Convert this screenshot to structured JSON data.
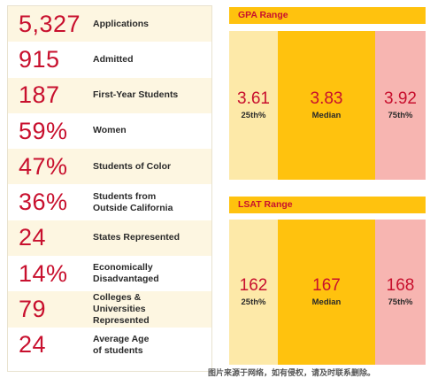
{
  "stats": [
    {
      "value": "5,327",
      "label": "Applications"
    },
    {
      "value": "915",
      "label": "Admitted"
    },
    {
      "value": "187",
      "label": "First-Year Students"
    },
    {
      "value": "59%",
      "label": "Women"
    },
    {
      "value": "47%",
      "label": "Students of Color"
    },
    {
      "value": "36%",
      "label": "Students from\nOutside California"
    },
    {
      "value": "24",
      "label": "States Represented"
    },
    {
      "value": "14%",
      "label": "Economically\nDisadvantaged"
    },
    {
      "value": "79",
      "label": "Colleges &\nUniversities\nRepresented"
    },
    {
      "value": "24",
      "label": "Average Age\nof students"
    }
  ],
  "gpa": {
    "title": "GPA Range",
    "low": {
      "value": "3.61",
      "label": "25th%"
    },
    "median": {
      "value": "3.83",
      "label": "Median"
    },
    "high": {
      "value": "3.92",
      "label": "75th%"
    }
  },
  "lsat": {
    "title": "LSAT Range",
    "low": {
      "value": "162",
      "label": "25th%"
    },
    "median": {
      "value": "167",
      "label": "Median"
    },
    "high": {
      "value": "168",
      "label": "75th%"
    }
  },
  "colors": {
    "accent_red": "#c8102e",
    "gold": "#ffc20e",
    "light_gold": "#fde9a8",
    "pink": "#f7b5b1",
    "row_shade": "#fdf6e1"
  },
  "watermark": "图片来源于网络，如有侵权，请及时联系删除。"
}
